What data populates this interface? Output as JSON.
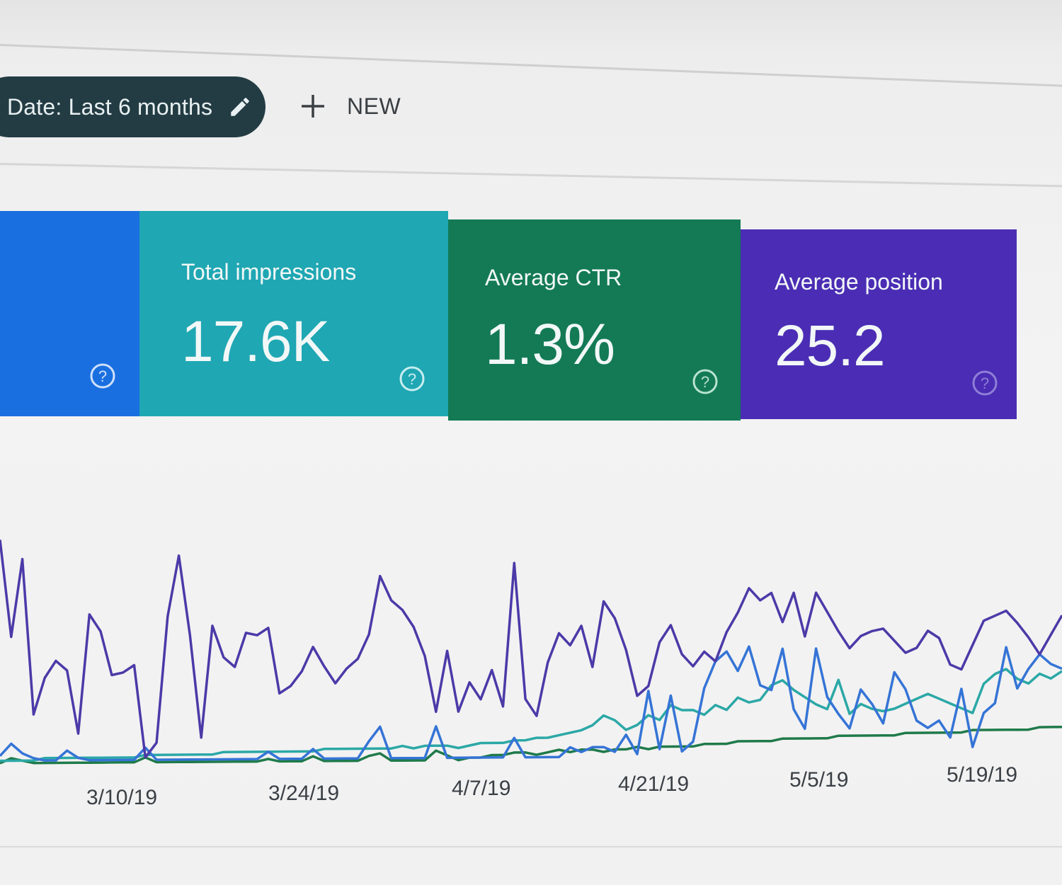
{
  "toolbar": {
    "date_filter_label": "Date: Last 6 months",
    "date_filter_icon": "pencil-icon",
    "new_button_label": "NEW",
    "new_button_icon": "plus-icon"
  },
  "metric_cards": [
    {
      "id": "total-clicks",
      "title": "",
      "value": "",
      "color": "#1a73e8",
      "icon": "help-icon"
    },
    {
      "id": "total-impressions",
      "title": "Total impressions",
      "value": "17.6K",
      "color": "#1fa9b5",
      "icon": "help-icon"
    },
    {
      "id": "average-ctr",
      "title": "Average CTR",
      "value": "1.3%",
      "color": "#117a56",
      "icon": "help-icon"
    },
    {
      "id": "average-position",
      "title": "Average position",
      "value": "25.2",
      "color": "#4a2bb3",
      "icon": "help-icon"
    }
  ],
  "chart_data": {
    "type": "line",
    "x_tick_labels": [
      "3/10/19",
      "3/24/19",
      "4/7/19",
      "4/21/19",
      "5/5/19",
      "5/19/19"
    ],
    "grid": false,
    "legend": "none",
    "series": [
      {
        "color": "#4b3aa8",
        "values": [
          92,
          52,
          84,
          20,
          35,
          42,
          38,
          12,
          61,
          54,
          36,
          37,
          40,
          2,
          8,
          60,
          85,
          52,
          10,
          56,
          43,
          39,
          53,
          52,
          55,
          28,
          31,
          37,
          47,
          39,
          32,
          38,
          42,
          52,
          76,
          66,
          62,
          55,
          43,
          20,
          45,
          20,
          32,
          25,
          37,
          22,
          81,
          25,
          18,
          40,
          52,
          47,
          55,
          38,
          65,
          58,
          45,
          26,
          30,
          48,
          55,
          43,
          38,
          44,
          40,
          52,
          60,
          70,
          65,
          68,
          56,
          68,
          50,
          68,
          60,
          52,
          45,
          50,
          52,
          53,
          48,
          43,
          45,
          52,
          49,
          38,
          36,
          46,
          56,
          58,
          60,
          55,
          49,
          42,
          50,
          58
        ]
      },
      {
        "color": "#3574d6",
        "values": [
          3,
          8,
          4,
          2,
          1,
          1,
          5,
          2,
          1,
          1,
          1,
          1,
          1,
          6,
          1,
          1,
          1,
          1,
          1,
          1,
          1,
          1,
          1,
          1,
          4,
          1,
          1,
          1,
          5,
          1,
          1,
          1,
          1,
          8,
          14,
          1,
          1,
          1,
          1,
          14,
          1,
          1,
          1,
          1,
          1,
          1,
          9,
          1,
          1,
          1,
          1,
          5,
          3,
          5,
          5,
          3,
          10,
          2,
          28,
          4,
          26,
          3,
          7,
          29,
          40,
          44,
          36,
          46,
          30,
          28,
          45,
          20,
          12,
          45,
          25,
          18,
          12,
          28,
          22,
          14,
          35,
          28,
          15,
          12,
          15,
          8,
          28,
          4,
          18,
          22,
          45,
          28,
          36,
          42,
          38,
          36
        ]
      },
      {
        "color": "#2ba8a6",
        "values": [
          1,
          1,
          1,
          1,
          2,
          2,
          2,
          2,
          2,
          2,
          2,
          2,
          2,
          3,
          3,
          3,
          3,
          3,
          3,
          3,
          4,
          4,
          4,
          4,
          4,
          4,
          4,
          4,
          4,
          5,
          5,
          5,
          5,
          5,
          5,
          5,
          6,
          5,
          6,
          6,
          6,
          5,
          6,
          7,
          7,
          7,
          8,
          8,
          9,
          9,
          10,
          11,
          12,
          14,
          18,
          16,
          12,
          14,
          18,
          16,
          22,
          20,
          20,
          18,
          22,
          20,
          25,
          23,
          24,
          30,
          32,
          28,
          25,
          22,
          20,
          32,
          18,
          22,
          20,
          19,
          20,
          22,
          24,
          26,
          24,
          22,
          20,
          18,
          30,
          34,
          36,
          32,
          30,
          34,
          32,
          35
        ]
      },
      {
        "color": "#1f7a4a",
        "values": [
          0,
          2,
          1,
          0,
          0,
          0,
          0,
          0,
          0,
          0,
          0,
          0,
          0,
          2,
          0,
          0,
          0,
          0,
          0,
          0,
          0,
          0,
          0,
          0,
          1,
          0,
          0,
          0,
          2,
          0,
          0,
          0,
          0,
          2,
          3,
          0,
          0,
          0,
          0,
          4,
          2,
          0,
          1,
          1,
          2,
          2,
          3,
          3,
          2,
          3,
          4,
          3,
          4,
          4,
          3,
          4,
          4,
          5,
          4,
          5,
          5,
          5,
          5,
          6,
          6,
          6,
          7,
          7,
          7,
          7,
          8,
          8,
          8,
          8,
          8,
          9,
          9,
          9,
          9,
          9,
          9,
          10,
          10,
          10,
          10,
          10,
          10,
          11,
          11,
          11,
          11,
          11,
          11,
          12,
          12,
          12
        ]
      }
    ]
  }
}
